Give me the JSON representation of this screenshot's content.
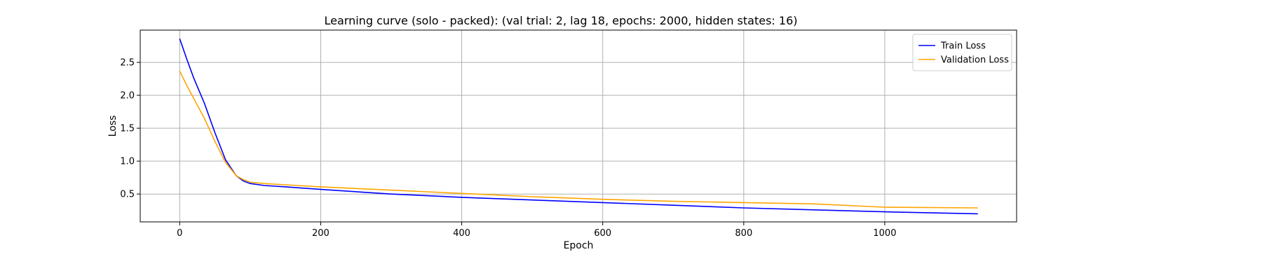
{
  "chart_data": {
    "type": "line",
    "title": "Learning curve (solo - packed): (val trial: 2, lag 18, epochs: 2000, hidden states: 16)",
    "xlabel": "Epoch",
    "ylabel": "Loss",
    "xlim": [
      -56,
      1187
    ],
    "ylim": [
      0.077,
      2.99
    ],
    "xticks": [
      0,
      200,
      400,
      600,
      800,
      1000
    ],
    "yticks": [
      0.5,
      1.0,
      1.5,
      2.0,
      2.5
    ],
    "xtick_labels": [
      "0",
      "200",
      "400",
      "600",
      "800",
      "1000"
    ],
    "ytick_labels": [
      "0.5",
      "1.0",
      "1.5",
      "2.0",
      "2.5"
    ],
    "grid": true,
    "legend": "top-right",
    "series": [
      {
        "name": "Train Loss",
        "color": "#0000ff",
        "x": [
          0,
          10,
          20,
          35,
          50,
          65,
          80,
          90,
          100,
          120,
          150,
          200,
          300,
          400,
          500,
          600,
          700,
          800,
          900,
          1000,
          1132
        ],
        "y": [
          2.86,
          2.55,
          2.26,
          1.88,
          1.43,
          1.02,
          0.78,
          0.7,
          0.66,
          0.63,
          0.61,
          0.57,
          0.5,
          0.45,
          0.41,
          0.37,
          0.33,
          0.29,
          0.26,
          0.23,
          0.2
        ]
      },
      {
        "name": "Validation Loss",
        "color": "#ffa500",
        "x": [
          0,
          10,
          20,
          35,
          50,
          65,
          80,
          90,
          100,
          120,
          150,
          200,
          300,
          400,
          500,
          600,
          700,
          800,
          900,
          1000,
          1132
        ],
        "y": [
          2.37,
          2.15,
          1.95,
          1.65,
          1.3,
          0.98,
          0.78,
          0.72,
          0.68,
          0.66,
          0.64,
          0.61,
          0.56,
          0.51,
          0.46,
          0.42,
          0.39,
          0.37,
          0.35,
          0.3,
          0.29
        ]
      }
    ]
  }
}
